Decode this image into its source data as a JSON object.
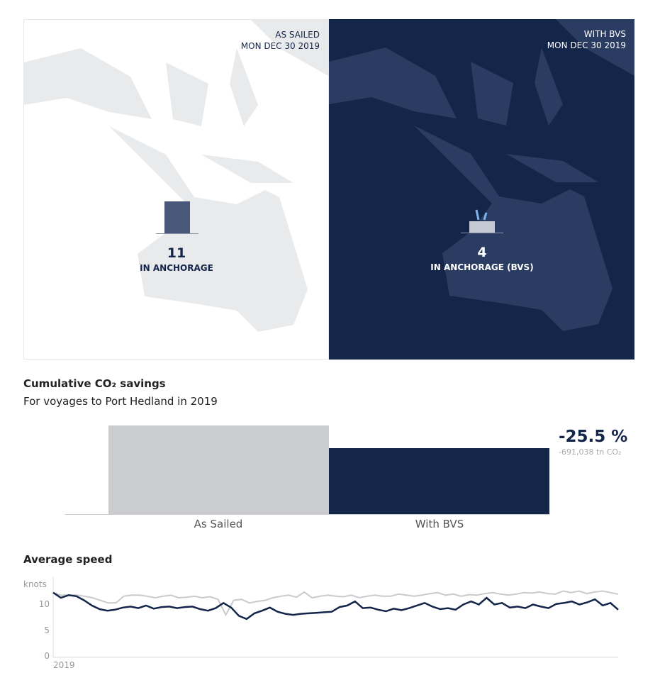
{
  "maps": {
    "as_sailed": {
      "title": "AS SAILED",
      "date": "MON DEC 30 2019",
      "count": "11",
      "label": "IN ANCHORAGE"
    },
    "with_bvs": {
      "title": "WITH BVS",
      "date": "MON DEC 30 2019",
      "count": "4",
      "label": "IN ANCHORAGE (BVS)"
    }
  },
  "colors": {
    "navy": "#14254a",
    "gray": "#cbccd0",
    "land_light": "#e9eaec",
    "land_dark": "#2a3c62"
  },
  "chart_data": [
    {
      "type": "bar",
      "title": "Cumulative CO₂ savings",
      "subtitle": "For voyages to Port Hedland in 2019",
      "categories": [
        "As Sailed",
        "With BVS"
      ],
      "values": [
        100,
        74.5
      ],
      "annotation": {
        "value": "-25.5 %",
        "detail": "-691,038 tn CO₂"
      }
    },
    {
      "type": "line",
      "title": "Average speed",
      "ylabel": "knots",
      "ylim": [
        0,
        13
      ],
      "yticks": [
        "0",
        "5",
        "10"
      ],
      "xtick": "2019",
      "series": [
        {
          "values": [
            12.5,
            12,
            12,
            12,
            11.8,
            11.5,
            11,
            10.5,
            10.5,
            11.8,
            12,
            12,
            11.8,
            11.5,
            11.8,
            12,
            11.5,
            11.6,
            11.8,
            11.5,
            11.7,
            11.2,
            8.2,
            11,
            11.2,
            10.5,
            10.8,
            11,
            11.5,
            11.8,
            12,
            11.6,
            12.6,
            11.5,
            11.8,
            12,
            11.8,
            11.7,
            12,
            11.5,
            11.8,
            12,
            11.8,
            11.8,
            12.2,
            12,
            11.8,
            12,
            12.3,
            12.5,
            12,
            12.2,
            11.8,
            12.1,
            12,
            12.3,
            12.5,
            12.2,
            12,
            12.2,
            12.5,
            12.4,
            12.6,
            12.3,
            12.2,
            12.8,
            12.5,
            12.8,
            12.3,
            12.6,
            12.8,
            12.5,
            12.2
          ]
        },
        {
          "values": [
            12.5,
            11.5,
            12,
            11.8,
            11,
            10,
            9.3,
            9,
            9.2,
            9.6,
            9.8,
            9.5,
            10,
            9.4,
            9.7,
            9.8,
            9.5,
            9.7,
            9.8,
            9.3,
            9,
            9.5,
            10.5,
            9.6,
            8,
            7.4,
            8.5,
            9,
            9.6,
            8.8,
            8.4,
            8.2,
            8.4,
            8.5,
            8.6,
            8.7,
            8.8,
            9.7,
            10,
            10.8,
            9.5,
            9.6,
            9.2,
            8.9,
            9.4,
            9.1,
            9.5,
            10,
            10.5,
            9.8,
            9.3,
            9.5,
            9.2,
            10.2,
            10.8,
            10.2,
            11.5,
            10.2,
            10.5,
            9.6,
            9.8,
            9.5,
            10.2,
            9.8,
            9.5,
            10.3,
            10.5,
            10.8,
            10.2,
            10.6,
            11.2,
            10,
            10.5,
            9.2
          ]
        }
      ]
    }
  ]
}
